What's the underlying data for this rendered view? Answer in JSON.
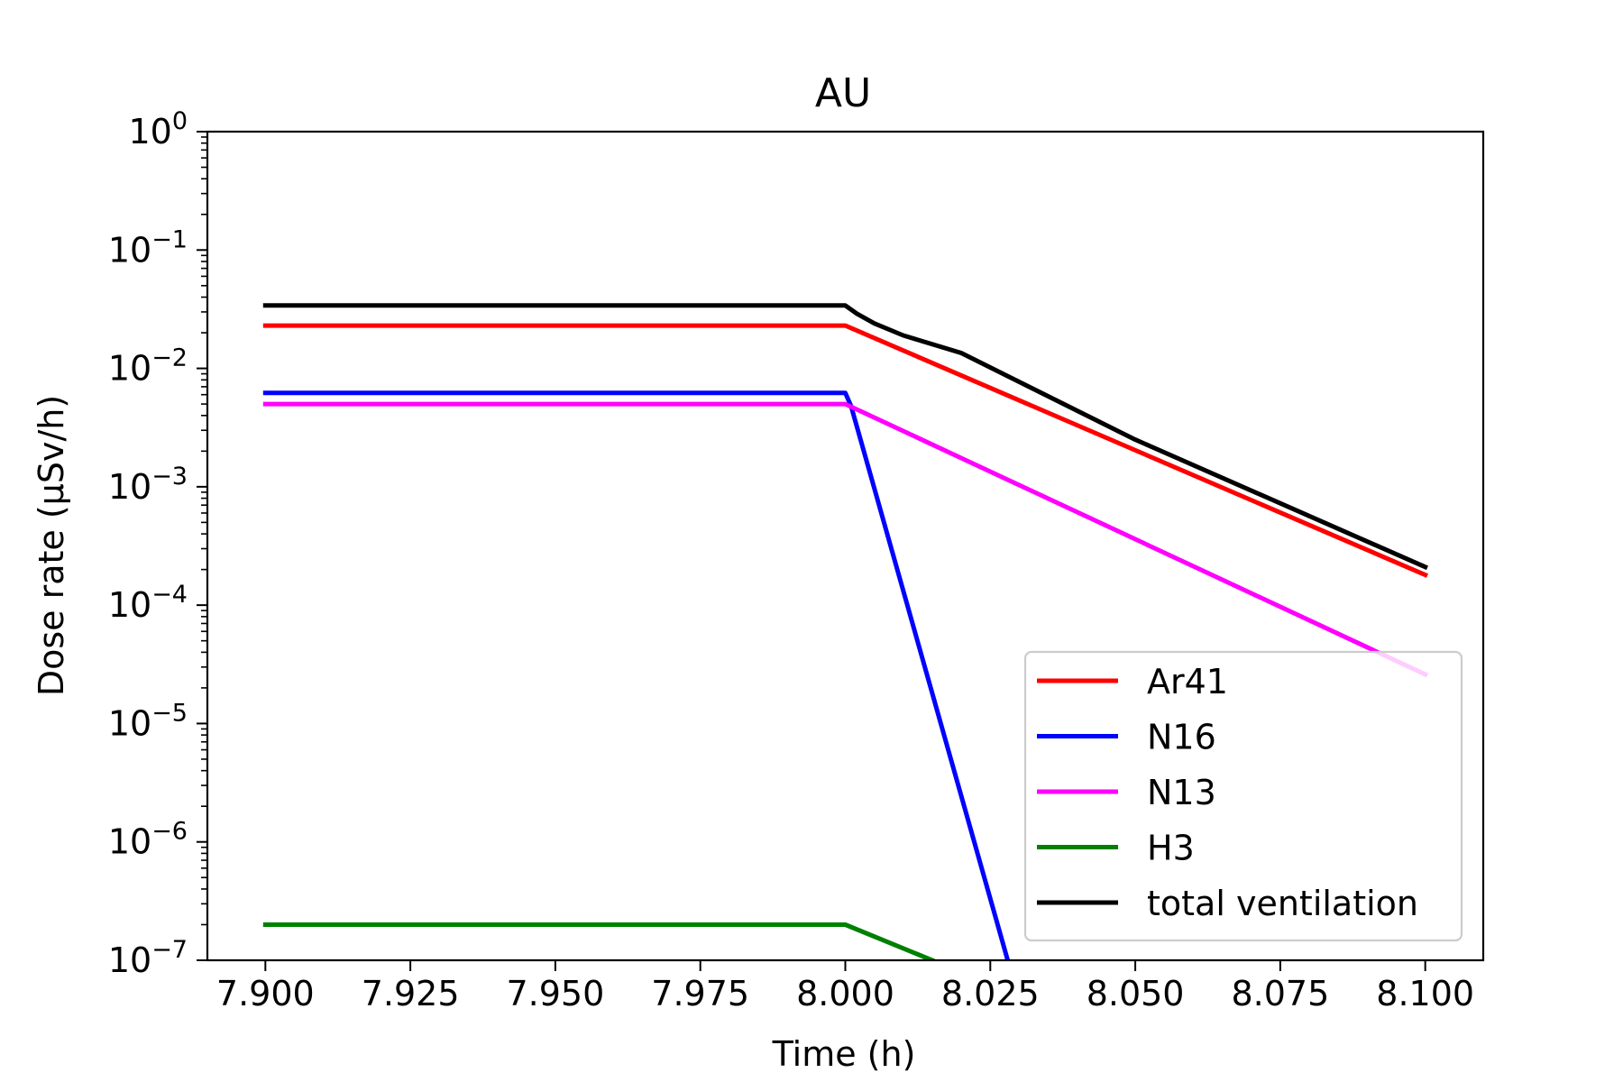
{
  "chart_data": {
    "type": "line",
    "title": "AU",
    "xlabel": "Time (h)",
    "ylabel": "Dose rate (μSv/h)",
    "xlim": [
      7.89,
      8.11
    ],
    "ylim": [
      1e-07,
      1
    ],
    "yscale": "log",
    "grid": false,
    "legend_position": "lower-right",
    "x_ticks": [
      7.9,
      7.925,
      7.95,
      7.975,
      8.0,
      8.025,
      8.05,
      8.075,
      8.1
    ],
    "x_tick_labels": [
      "7.900",
      "7.925",
      "7.950",
      "7.975",
      "8.000",
      "8.025",
      "8.050",
      "8.075",
      "8.100"
    ],
    "y_ticks": [
      {
        "value": 1e-07,
        "base": "10",
        "exp": "−7"
      },
      {
        "value": 1e-06,
        "base": "10",
        "exp": "−6"
      },
      {
        "value": 1e-05,
        "base": "10",
        "exp": "−5"
      },
      {
        "value": 0.0001,
        "base": "10",
        "exp": "−4"
      },
      {
        "value": 0.001,
        "base": "10",
        "exp": "−3"
      },
      {
        "value": 0.01,
        "base": "10",
        "exp": "−2"
      },
      {
        "value": 0.1,
        "base": "10",
        "exp": "−1"
      },
      {
        "value": 1,
        "base": "10",
        "exp": "0"
      }
    ],
    "series": [
      {
        "name": "Ar41",
        "color": "#ff0000",
        "x": [
          7.9,
          8.0,
          8.1
        ],
        "y": [
          0.023,
          0.023,
          0.00018
        ]
      },
      {
        "name": "N16",
        "color": "#0000ff",
        "x": [
          7.9,
          8.0,
          8.001,
          8.028
        ],
        "y": [
          0.0062,
          0.0062,
          0.0048,
          1e-07
        ]
      },
      {
        "name": "N13",
        "color": "#ff00ff",
        "x": [
          7.9,
          8.0,
          8.1
        ],
        "y": [
          0.005,
          0.005,
          2.6e-05
        ]
      },
      {
        "name": "H3",
        "color": "#008000",
        "x": [
          7.9,
          8.0,
          8.015
        ],
        "y": [
          2e-07,
          2e-07,
          1e-07
        ]
      },
      {
        "name": "total ventilation",
        "color": "#000000",
        "x": [
          7.9,
          8.0,
          8.002,
          8.005,
          8.01,
          8.02,
          8.05,
          8.1
        ],
        "y": [
          0.034,
          0.034,
          0.029,
          0.024,
          0.019,
          0.0135,
          0.0025,
          0.00021
        ]
      }
    ]
  }
}
